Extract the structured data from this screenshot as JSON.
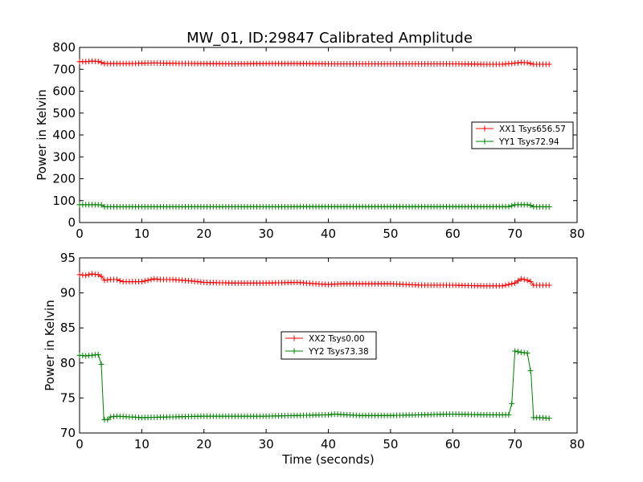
{
  "title": "MW_01, ID:29847 Calibrated Amplitude",
  "chart_data": [
    {
      "type": "line",
      "ylabel": "Power in Kelvin",
      "xlabel": "",
      "xlim": [
        0,
        80
      ],
      "ylim": [
        0,
        800
      ],
      "xticks": [
        "0",
        "10",
        "20",
        "30",
        "40",
        "50",
        "60",
        "70",
        "80"
      ],
      "yticks": [
        "0",
        "100",
        "200",
        "300",
        "400",
        "500",
        "600",
        "700",
        "800"
      ],
      "legend_position": "center-right",
      "grid": false,
      "series": [
        {
          "name": "XX1 Tsys656.57",
          "color": "#ff0000",
          "marker": "+",
          "x": [
            0,
            1,
            2,
            3,
            4,
            5,
            8,
            12,
            15,
            20,
            25,
            30,
            35,
            40,
            45,
            50,
            55,
            60,
            63,
            65,
            68,
            70,
            71,
            72,
            73,
            74,
            75.5
          ],
          "y": [
            735,
            735,
            737,
            736,
            726,
            726,
            726,
            729,
            727,
            726,
            725,
            726,
            726,
            725,
            725,
            725,
            725,
            725,
            724,
            723,
            723,
            728,
            731,
            730,
            723,
            723,
            723
          ]
        },
        {
          "name": "YY1 Tsys72.94",
          "color": "#008000",
          "marker": "+",
          "x": [
            0,
            1,
            2,
            3,
            3.6,
            4,
            5,
            10,
            20,
            30,
            40,
            41,
            50,
            60,
            65,
            69,
            70,
            71,
            72,
            72.6,
            73,
            75.5
          ],
          "y": [
            81,
            81,
            81,
            81,
            80,
            72,
            72,
            72,
            72,
            72,
            72.5,
            72.7,
            72.5,
            72.6,
            72.6,
            72.6,
            81,
            81,
            81,
            78,
            72,
            72
          ]
        }
      ]
    },
    {
      "type": "line",
      "ylabel": "Power in Kelvin",
      "xlabel": "Time (seconds)",
      "xlim": [
        0,
        80
      ],
      "ylim": [
        70,
        95
      ],
      "xticks": [
        "0",
        "10",
        "20",
        "30",
        "40",
        "50",
        "60",
        "70",
        "80"
      ],
      "yticks": [
        "70",
        "75",
        "80",
        "85",
        "90",
        "95"
      ],
      "legend_position": "center",
      "grid": false,
      "series": [
        {
          "name": "XX2 Tsys0.00",
          "color": "#ff0000",
          "marker": "+",
          "x": [
            0,
            1,
            2,
            3,
            3.6,
            4,
            5,
            6,
            7,
            8,
            10,
            12,
            13,
            15,
            18,
            20,
            25,
            30,
            35,
            38,
            40,
            42,
            45,
            50,
            55,
            60,
            65,
            68,
            70,
            71,
            72,
            72.6,
            73,
            75.5
          ],
          "y": [
            92.6,
            92.5,
            92.7,
            92.6,
            92.3,
            91.8,
            91.9,
            91.9,
            91.6,
            91.6,
            91.6,
            92.0,
            91.9,
            91.9,
            91.7,
            91.5,
            91.4,
            91.4,
            91.5,
            91.3,
            91.2,
            91.3,
            91.3,
            91.3,
            91.1,
            91.1,
            91.0,
            91.0,
            91.4,
            92.0,
            91.8,
            91.6,
            91.1,
            91.1
          ]
        },
        {
          "name": "YY2 Tsys73.38",
          "color": "#008000",
          "marker": "+",
          "x": [
            0,
            1,
            2,
            3,
            3.5,
            3.9,
            4.5,
            5,
            6,
            8,
            10,
            15,
            20,
            25,
            30,
            35,
            40,
            41,
            45,
            50,
            55,
            60,
            65,
            69,
            69.5,
            70,
            71,
            72,
            72.6,
            73,
            74,
            75.5
          ],
          "y": [
            81.1,
            81.0,
            81.1,
            81.2,
            79.8,
            71.9,
            71.9,
            72.3,
            72.4,
            72.3,
            72.2,
            72.3,
            72.4,
            72.4,
            72.4,
            72.5,
            72.6,
            72.7,
            72.5,
            72.5,
            72.6,
            72.7,
            72.6,
            72.6,
            74.2,
            81.7,
            81.5,
            81.4,
            78.4,
            72.2,
            72.2,
            72.1
          ]
        }
      ]
    }
  ]
}
